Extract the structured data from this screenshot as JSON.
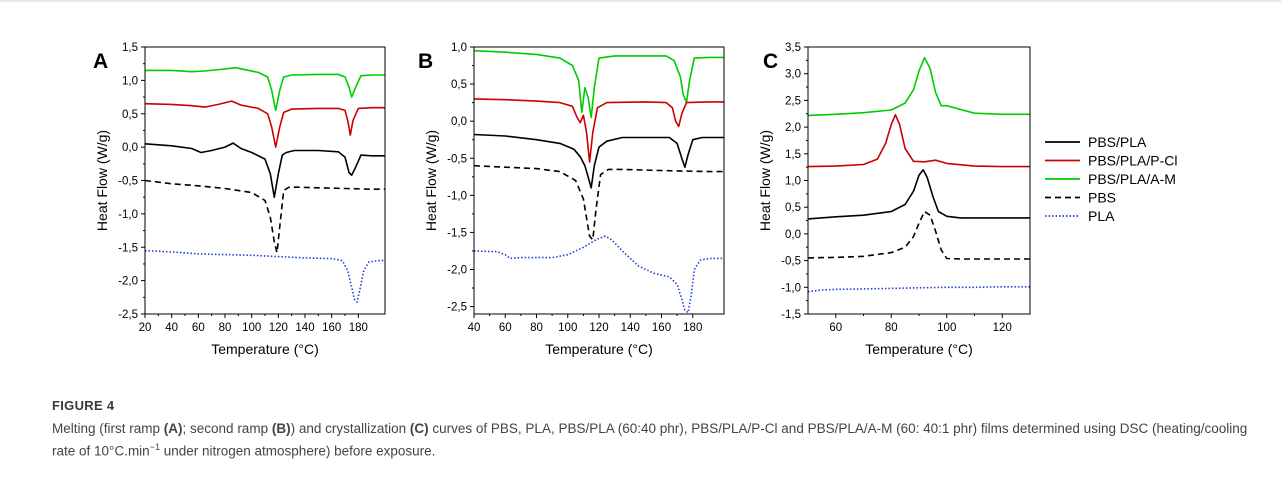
{
  "figure": {
    "label": "FIGURE 4",
    "caption_parts": [
      {
        "text": "Melting (first ramp ",
        "bold": false
      },
      {
        "text": "(A)",
        "bold": true
      },
      {
        "text": "; second ramp ",
        "bold": false
      },
      {
        "text": "(B)",
        "bold": true
      },
      {
        "text": ") and crystallization ",
        "bold": false
      },
      {
        "text": "(C)",
        "bold": true
      },
      {
        "text": " curves of PBS, PLA, PBS/PLA (60:40 phr), PBS/PLA/P-Cl and PBS/PLA/A-M (60: 40:1 phr) films determined using DSC (heating/cooling rate of 10°C.min",
        "bold": false
      },
      {
        "text": "−1",
        "bold": false,
        "sup": true
      },
      {
        "text": " under nitrogen atmosphere) before exposure.",
        "bold": false
      }
    ]
  },
  "legend": {
    "entries": [
      {
        "name": "PBS/PLA",
        "color": "#000000",
        "dash": "solid"
      },
      {
        "name": "PBS/PLA/P-Cl",
        "color": "#cc0000",
        "dash": "solid"
      },
      {
        "name": "PBS/PLA/A-M",
        "color": "#00cc00",
        "dash": "solid"
      },
      {
        "name": "PBS",
        "color": "#000000",
        "dash": "dashed"
      },
      {
        "name": "PLA",
        "color": "#1f3fd6",
        "dash": "dotted"
      }
    ],
    "placement": "right"
  },
  "chart_data": [
    {
      "panel": "A",
      "type": "line",
      "xlabel": "Temperature (°C)",
      "ylabel": "Heat Flow (W/g)",
      "xlim": [
        20,
        200
      ],
      "ylim": [
        -2.5,
        1.5
      ],
      "xticks": [
        20,
        40,
        60,
        80,
        100,
        120,
        140,
        160,
        180
      ],
      "yticks": [
        -2.5,
        -2.0,
        -1.5,
        -1.0,
        -0.5,
        0.0,
        0.5,
        1.0,
        1.5
      ],
      "ytick_labels": [
        "-2,5",
        "-2,0",
        "-1,5",
        "-1,0",
        "-0,5",
        "0,0",
        "0,5",
        "1,0",
        "1,5"
      ],
      "series": [
        {
          "name": "PBS/PLA/A-M",
          "x": [
            20,
            40,
            55,
            65,
            80,
            88,
            95,
            105,
            112,
            115,
            118,
            121,
            124,
            130,
            150,
            165,
            170,
            173,
            175,
            178,
            182,
            190,
            200
          ],
          "y": [
            1.15,
            1.15,
            1.13,
            1.14,
            1.17,
            1.19,
            1.16,
            1.12,
            1.05,
            0.85,
            0.55,
            0.85,
            1.05,
            1.08,
            1.09,
            1.09,
            1.05,
            0.9,
            0.75,
            0.9,
            1.07,
            1.08,
            1.08
          ]
        },
        {
          "name": "PBS/PLA/P-Cl",
          "x": [
            20,
            40,
            55,
            65,
            75,
            85,
            92,
            105,
            112,
            115,
            118,
            121,
            124,
            130,
            150,
            165,
            170,
            172,
            174,
            176,
            180,
            190,
            200
          ],
          "y": [
            0.65,
            0.64,
            0.62,
            0.6,
            0.64,
            0.69,
            0.63,
            0.58,
            0.5,
            0.3,
            0.0,
            0.3,
            0.52,
            0.57,
            0.58,
            0.58,
            0.55,
            0.4,
            0.18,
            0.4,
            0.58,
            0.59,
            0.59
          ]
        },
        {
          "name": "PBS/PLA",
          "x": [
            20,
            40,
            55,
            62,
            70,
            80,
            86,
            92,
            100,
            110,
            114,
            117,
            120,
            123,
            126,
            132,
            150,
            165,
            170,
            173,
            175,
            178,
            182,
            190,
            200
          ],
          "y": [
            0.05,
            0.02,
            -0.02,
            -0.08,
            -0.05,
            0.0,
            0.06,
            -0.02,
            -0.08,
            -0.18,
            -0.4,
            -0.75,
            -0.4,
            -0.12,
            -0.08,
            -0.05,
            -0.05,
            -0.07,
            -0.15,
            -0.38,
            -0.42,
            -0.3,
            -0.12,
            -0.13,
            -0.13
          ]
        },
        {
          "name": "PBS",
          "x": [
            20,
            40,
            60,
            80,
            100,
            110,
            114,
            117,
            119,
            121,
            124,
            128,
            135,
            150,
            170,
            190,
            200
          ],
          "y": [
            -0.5,
            -0.55,
            -0.58,
            -0.62,
            -0.68,
            -0.8,
            -1.05,
            -1.42,
            -1.58,
            -1.2,
            -0.65,
            -0.6,
            -0.6,
            -0.61,
            -0.62,
            -0.63,
            -0.63
          ]
        },
        {
          "name": "PLA",
          "x": [
            20,
            40,
            60,
            80,
            100,
            120,
            140,
            160,
            168,
            172,
            175,
            177,
            179,
            181,
            184,
            188,
            195,
            200
          ],
          "y": [
            -1.55,
            -1.57,
            -1.6,
            -1.61,
            -1.62,
            -1.64,
            -1.66,
            -1.67,
            -1.7,
            -1.85,
            -2.1,
            -2.28,
            -2.32,
            -2.15,
            -1.85,
            -1.72,
            -1.7,
            -1.7
          ]
        }
      ]
    },
    {
      "panel": "B",
      "type": "line",
      "xlabel": "Temperature (°C)",
      "ylabel": "Heat Flow (W/g)",
      "xlim": [
        40,
        200
      ],
      "ylim": [
        -2.6,
        1.0
      ],
      "xticks": [
        40,
        60,
        80,
        100,
        120,
        140,
        160,
        180
      ],
      "yticks": [
        -2.5,
        -2.0,
        -1.5,
        -1.0,
        -0.5,
        0.0,
        0.5,
        1.0
      ],
      "ytick_labels": [
        "-2,5",
        "-2,0",
        "-1,5",
        "-1,0",
        "-0,5",
        "0,0",
        "0,5",
        "1,0"
      ],
      "series": [
        {
          "name": "PBS/PLA/A-M",
          "x": [
            40,
            60,
            80,
            95,
            103,
            107,
            109,
            111,
            113,
            115,
            117,
            120,
            130,
            150,
            163,
            168,
            172,
            174,
            176,
            178,
            181,
            190,
            200
          ],
          "y": [
            0.95,
            0.93,
            0.9,
            0.85,
            0.75,
            0.55,
            0.12,
            0.45,
            0.32,
            0.05,
            0.45,
            0.85,
            0.88,
            0.88,
            0.88,
            0.82,
            0.6,
            0.35,
            0.25,
            0.55,
            0.85,
            0.86,
            0.86
          ]
        },
        {
          "name": "PBS/PLA/P-Cl",
          "x": [
            40,
            60,
            80,
            95,
            103,
            106,
            108,
            110,
            112,
            114,
            116,
            119,
            125,
            150,
            163,
            167,
            169,
            171,
            173,
            176,
            190,
            200
          ],
          "y": [
            0.3,
            0.29,
            0.27,
            0.25,
            0.2,
            0.05,
            -0.02,
            0.08,
            -0.15,
            -0.55,
            -0.15,
            0.18,
            0.25,
            0.26,
            0.25,
            0.18,
            0.0,
            -0.07,
            0.1,
            0.25,
            0.26,
            0.26
          ]
        },
        {
          "name": "PBS/PLA",
          "x": [
            40,
            60,
            80,
            95,
            104,
            108,
            111,
            113,
            115,
            117,
            120,
            125,
            135,
            150,
            165,
            170,
            173,
            175,
            177,
            180,
            186,
            195,
            200
          ],
          "y": [
            -0.18,
            -0.2,
            -0.25,
            -0.3,
            -0.38,
            -0.48,
            -0.6,
            -0.75,
            -0.9,
            -0.6,
            -0.35,
            -0.27,
            -0.22,
            -0.22,
            -0.22,
            -0.3,
            -0.5,
            -0.62,
            -0.45,
            -0.25,
            -0.22,
            -0.22,
            -0.22
          ]
        },
        {
          "name": "PBS",
          "x": [
            40,
            60,
            80,
            95,
            105,
            110,
            112,
            114,
            116,
            118,
            121,
            126,
            135,
            150,
            170,
            190,
            200
          ],
          "y": [
            -0.6,
            -0.62,
            -0.64,
            -0.68,
            -0.8,
            -1.05,
            -1.3,
            -1.55,
            -1.6,
            -1.2,
            -0.72,
            -0.65,
            -0.65,
            -0.66,
            -0.67,
            -0.68,
            -0.68
          ]
        },
        {
          "name": "PLA",
          "x": [
            40,
            55,
            60,
            63,
            70,
            90,
            100,
            110,
            118,
            124,
            128,
            135,
            145,
            155,
            165,
            170,
            173,
            175,
            177,
            179,
            181,
            185,
            192,
            200
          ],
          "y": [
            -1.75,
            -1.76,
            -1.8,
            -1.85,
            -1.84,
            -1.84,
            -1.8,
            -1.7,
            -1.6,
            -1.55,
            -1.6,
            -1.75,
            -1.95,
            -2.05,
            -2.1,
            -2.2,
            -2.4,
            -2.55,
            -2.58,
            -2.35,
            -2.0,
            -1.87,
            -1.85,
            -1.85
          ]
        }
      ]
    },
    {
      "panel": "C",
      "type": "line",
      "xlabel": "Temperature (°C)",
      "ylabel": "Heat Flow (W/g)",
      "xlim": [
        50,
        130
      ],
      "ylim": [
        -1.5,
        3.5
      ],
      "xticks": [
        60,
        80,
        100,
        120
      ],
      "yticks": [
        -1.5,
        -1.0,
        -0.5,
        0.0,
        0.5,
        1.0,
        1.5,
        2.0,
        2.5,
        3.0,
        3.5
      ],
      "ytick_labels": [
        "-1,5",
        "-1,0",
        "-0,5",
        "0,0",
        "0,5",
        "1,0",
        "1,5",
        "2,0",
        "2,5",
        "3,0",
        "3,5"
      ],
      "series": [
        {
          "name": "PBS/PLA/A-M",
          "x": [
            50,
            60,
            70,
            80,
            85,
            88,
            90,
            92,
            94,
            96,
            98,
            100,
            105,
            110,
            120,
            130
          ],
          "y": [
            2.22,
            2.24,
            2.27,
            2.32,
            2.45,
            2.7,
            3.05,
            3.3,
            3.1,
            2.65,
            2.4,
            2.4,
            2.33,
            2.26,
            2.24,
            2.24
          ]
        },
        {
          "name": "PBS/PLA/P-Cl",
          "x": [
            50,
            60,
            70,
            75,
            78,
            80,
            81.5,
            83,
            85,
            88,
            92,
            96,
            100,
            110,
            120,
            130
          ],
          "y": [
            1.26,
            1.27,
            1.3,
            1.4,
            1.7,
            2.05,
            2.23,
            2.05,
            1.6,
            1.36,
            1.35,
            1.38,
            1.32,
            1.27,
            1.26,
            1.26
          ]
        },
        {
          "name": "PBS/PLA",
          "x": [
            50,
            60,
            70,
            80,
            85,
            88,
            90,
            91.5,
            93,
            95,
            97,
            100,
            105,
            110,
            120,
            130
          ],
          "y": [
            0.28,
            0.32,
            0.35,
            0.42,
            0.55,
            0.8,
            1.1,
            1.2,
            1.05,
            0.7,
            0.42,
            0.33,
            0.3,
            0.3,
            0.3,
            0.3
          ]
        },
        {
          "name": "PBS",
          "x": [
            50,
            60,
            70,
            80,
            85,
            88,
            90,
            92,
            94,
            96,
            98,
            100,
            105,
            110,
            120,
            130
          ],
          "y": [
            -0.45,
            -0.44,
            -0.42,
            -0.35,
            -0.25,
            -0.05,
            0.2,
            0.42,
            0.35,
            0.05,
            -0.3,
            -0.46,
            -0.47,
            -0.47,
            -0.47,
            -0.47
          ]
        },
        {
          "name": "PLA",
          "x": [
            50,
            55,
            60,
            70,
            80,
            90,
            100,
            110,
            120,
            130
          ],
          "y": [
            -1.08,
            -1.05,
            -1.04,
            -1.03,
            -1.02,
            -1.01,
            -1.0,
            -1.0,
            -0.99,
            -0.99
          ]
        }
      ]
    }
  ]
}
